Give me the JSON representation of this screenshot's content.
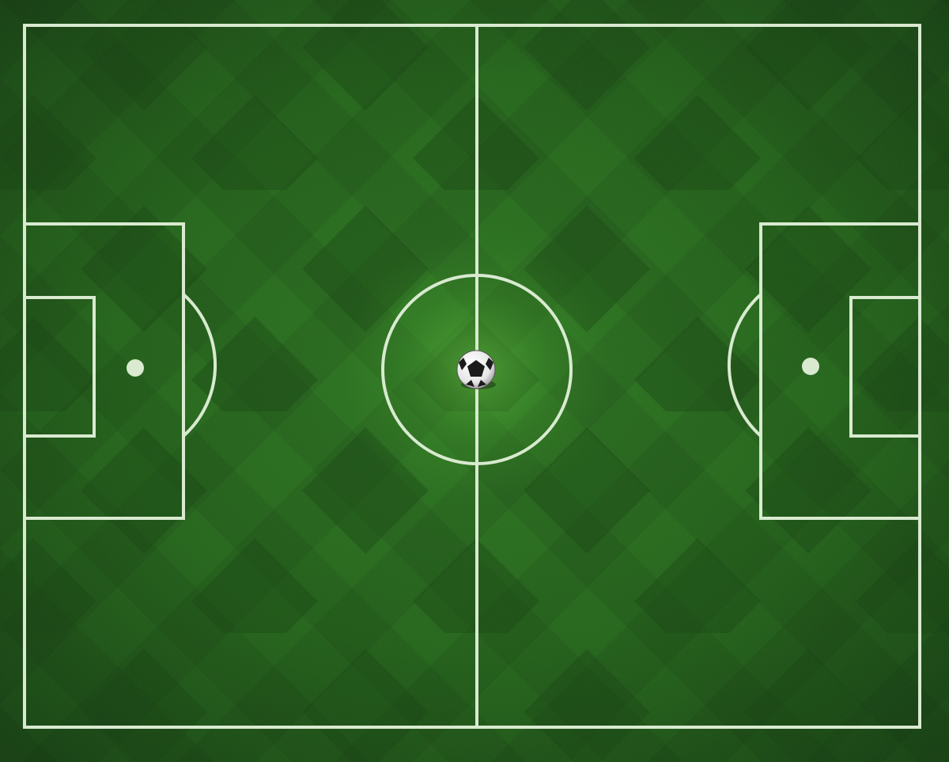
{
  "scene": {
    "description_kind": "top-down soccer pitch illustration",
    "colors": {
      "grass_light": "#2f7a22",
      "grass_mid": "#24651a",
      "grass_dark": "#174512",
      "diamond_dark": "#123a0e",
      "line": "#d9ead0",
      "spotlight": "#5fbf3a",
      "ball_white": "#f2f2f2",
      "ball_black": "#1b1b1b"
    },
    "elements": [
      "pitch-boundary",
      "halfway-line",
      "center-circle",
      "center-spot",
      "left-penalty-area",
      "left-goal-area",
      "left-penalty-arc",
      "left-penalty-spot",
      "right-penalty-area",
      "right-goal-area",
      "right-penalty-arc",
      "right-penalty-spot",
      "soccer-ball"
    ]
  }
}
